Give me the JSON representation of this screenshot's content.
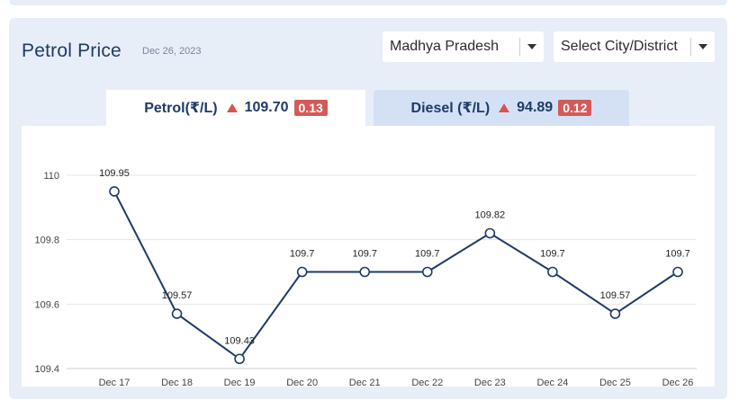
{
  "header": {
    "title": "Petrol Price",
    "date": "Dec 26, 2023"
  },
  "filters": {
    "state": "Madhya Pradesh",
    "city_placeholder": "Select City/District"
  },
  "tabs": [
    {
      "label": "Petrol(₹/L)",
      "price": "109.70",
      "change": "0.13",
      "active": true
    },
    {
      "label": "Diesel (₹/L)",
      "price": "94.89",
      "change": "0.12",
      "active": false
    }
  ],
  "colors": {
    "line": "#1f3a66",
    "up_arrow": "#d9534f",
    "badge": "#d45a57",
    "panel_bg": "#e8eef8"
  },
  "chart_data": {
    "type": "line",
    "categories": [
      "Dec 17",
      "Dec 18",
      "Dec 19",
      "Dec 20",
      "Dec 21",
      "Dec 22",
      "Dec 23",
      "Dec 24",
      "Dec 25",
      "Dec 26"
    ],
    "series": [
      {
        "values": [
          109.95,
          109.57,
          109.43,
          109.7,
          109.7,
          109.7,
          109.82,
          109.7,
          109.57,
          109.7
        ]
      }
    ],
    "data_labels": [
      "109.95",
      "109.57",
      "109.43",
      "109.7",
      "109.7",
      "109.7",
      "109.82",
      "109.7",
      "109.57",
      "109.7"
    ],
    "yticks": [
      110,
      109.8,
      109.6,
      109.4
    ],
    "ytick_labels": [
      "110",
      "109.8",
      "109.6",
      "109.4"
    ],
    "ylim": [
      109.4,
      110
    ],
    "grid": true,
    "markers": "hollow-circle"
  }
}
